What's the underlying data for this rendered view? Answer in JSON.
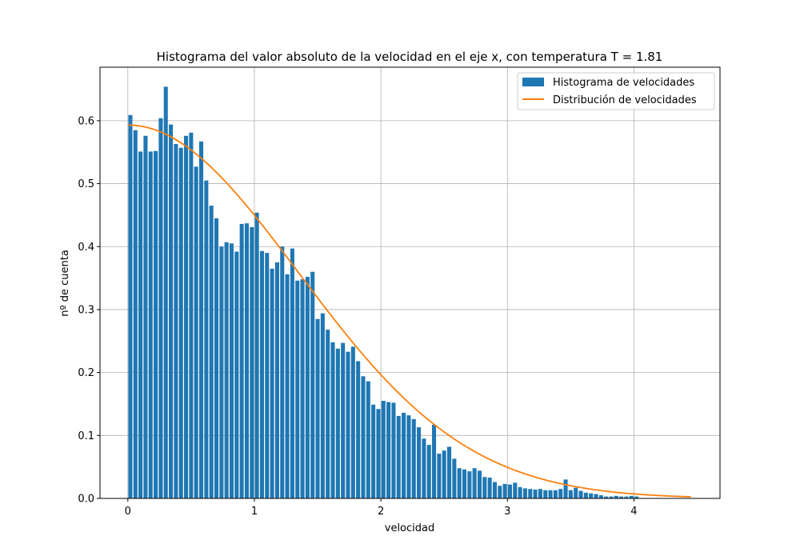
{
  "chart_data": {
    "type": "bar",
    "title": "Histograma del valor absoluto de la velocidad en el eje x, con temperatura T = 1.81",
    "xlabel": "velocidad",
    "ylabel": "nº de cuenta",
    "xlim": [
      -0.22,
      4.68
    ],
    "ylim": [
      0,
      0.685
    ],
    "x_ticks": [
      0,
      1,
      2,
      3,
      4
    ],
    "y_ticks": [
      0.0,
      0.1,
      0.2,
      0.3,
      0.4,
      0.5,
      0.6
    ],
    "grid": true,
    "legend_position": "top-right",
    "bin_width": 0.04,
    "bar_width": 0.032,
    "bins": {
      "start": 0.02,
      "step": 0.04,
      "values": [
        0.609,
        0.585,
        0.551,
        0.576,
        0.551,
        0.552,
        0.604,
        0.654,
        0.594,
        0.563,
        0.557,
        0.576,
        0.581,
        0.527,
        0.567,
        0.505,
        0.465,
        0.445,
        0.4,
        0.407,
        0.405,
        0.392,
        0.436,
        0.437,
        0.431,
        0.454,
        0.393,
        0.39,
        0.365,
        0.375,
        0.4,
        0.356,
        0.397,
        0.346,
        0.348,
        0.352,
        0.36,
        0.285,
        0.294,
        0.268,
        0.248,
        0.238,
        0.247,
        0.233,
        0.241,
        0.218,
        0.194,
        0.186,
        0.149,
        0.142,
        0.155,
        0.153,
        0.152,
        0.131,
        0.136,
        0.132,
        0.126,
        0.113,
        0.095,
        0.085,
        0.117,
        0.071,
        0.076,
        0.082,
        0.063,
        0.048,
        0.046,
        0.043,
        0.048,
        0.044,
        0.034,
        0.033,
        0.026,
        0.02,
        0.023,
        0.022,
        0.025,
        0.018,
        0.016,
        0.015,
        0.014,
        0.015,
        0.013,
        0.013,
        0.013,
        0.015,
        0.03,
        0.013,
        0.017,
        0.012,
        0.009,
        0.008,
        0.007,
        0.005,
        0.003,
        0.003,
        0.004,
        0.003,
        0.003,
        0.004,
        0.003
      ]
    },
    "series": [
      {
        "name": "Histograma de velocidades",
        "kind": "bar",
        "color": "#1f77b4"
      },
      {
        "name": "Distribución de velocidades",
        "kind": "line",
        "color": "#ff7f0e",
        "function": "half-gaussian",
        "temperature": 1.81,
        "x_range": [
          0,
          4.45
        ]
      }
    ]
  }
}
